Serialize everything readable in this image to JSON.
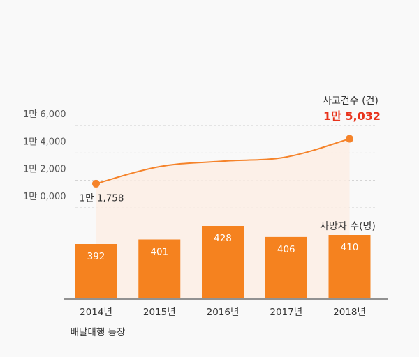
{
  "chart_data": [
    {
      "type": "line",
      "title": "사고건수 (건)",
      "x": [
        "2014년",
        "2015년",
        "2016년",
        "2017년",
        "2018년"
      ],
      "values": [
        11758,
        13000,
        13400,
        13700,
        15032
      ],
      "point_labels": [
        {
          "index": 0,
          "text": "1만 1,758"
        },
        {
          "index": 4,
          "text": "1만 5,032"
        }
      ],
      "yticks": [
        10000,
        12000,
        14000,
        16000
      ],
      "ytick_labels": [
        "1만 0,000",
        "1만 2,000",
        "1만 4,000",
        "1만 6,000"
      ],
      "ylim": [
        10000,
        16000
      ],
      "grid": true,
      "area_fill": true,
      "colors": {
        "line": "#f5832a",
        "fill": "#fdeee3",
        "highlight": "#e8331c"
      }
    },
    {
      "type": "bar",
      "title": "사망자 수(명)",
      "categories": [
        "2014년",
        "2015년",
        "2016년",
        "2017년",
        "2018년"
      ],
      "values": [
        392,
        401,
        428,
        406,
        410
      ],
      "data_labels": [
        "392",
        "401",
        "428",
        "406",
        "410"
      ],
      "colors": {
        "bar": "#f5821f",
        "label": "#ffffff"
      }
    }
  ],
  "annotation": "배달대행 등장"
}
